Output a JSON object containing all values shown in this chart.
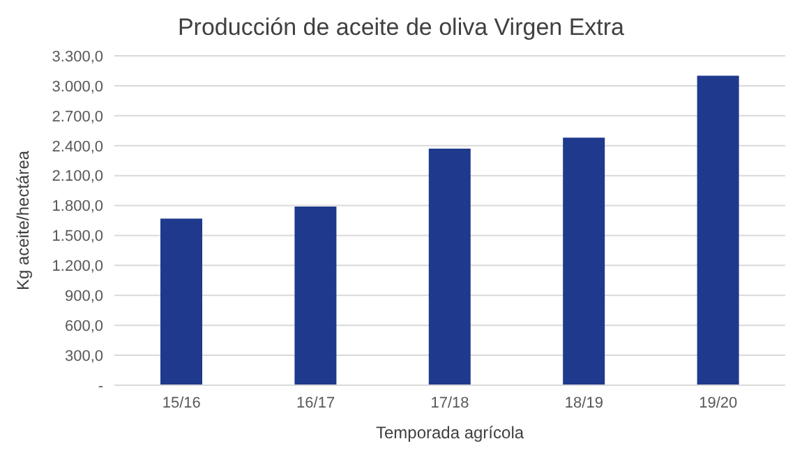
{
  "chart_data": {
    "type": "bar",
    "title": "Producción de aceite de oliva Virgen Extra",
    "xlabel": "Temporada agrícola",
    "ylabel": "Kg aceite/hectárea",
    "categories": [
      "15/16",
      "16/17",
      "17/18",
      "18/19",
      "19/20"
    ],
    "values": [
      1670,
      1790,
      2370,
      2480,
      3100
    ],
    "color": "#1f3a8c",
    "ylim": [
      0,
      3300
    ],
    "yticks": [
      {
        "value": 0,
        "label": "-"
      },
      {
        "value": 300,
        "label": "300,0"
      },
      {
        "value": 600,
        "label": "600,0"
      },
      {
        "value": 900,
        "label": "900,0"
      },
      {
        "value": 1200,
        "label": "1.200,0"
      },
      {
        "value": 1500,
        "label": "1.500,0"
      },
      {
        "value": 1800,
        "label": "1.800,0"
      },
      {
        "value": 2100,
        "label": "2.100,0"
      },
      {
        "value": 2400,
        "label": "2.400,0"
      },
      {
        "value": 2700,
        "label": "2.700,0"
      },
      {
        "value": 3000,
        "label": "3.000,0"
      },
      {
        "value": 3300,
        "label": "3.300,0"
      }
    ],
    "grid": "y"
  }
}
